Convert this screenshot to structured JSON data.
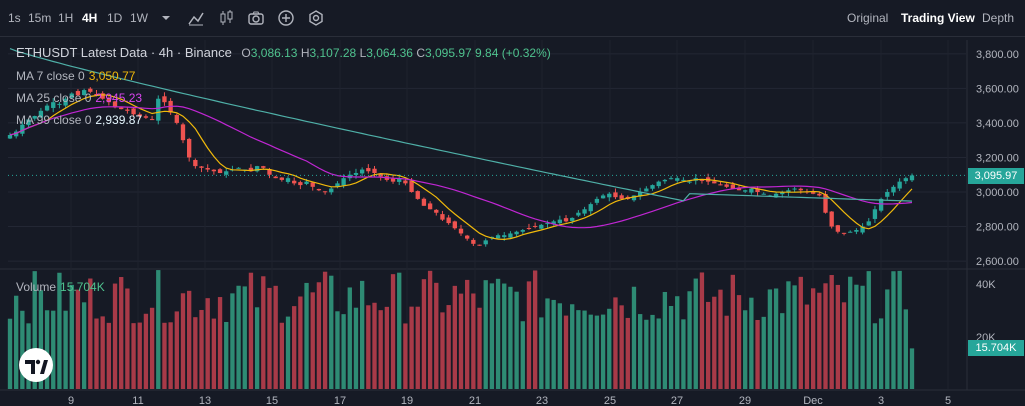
{
  "toolbar": {
    "intervals": [
      "1s",
      "15m",
      "1H",
      "4H",
      "1D",
      "1W"
    ],
    "active_interval": "4H",
    "icons": [
      "chevron-down-icon",
      "indicator-line-icon",
      "candles-icon",
      "camera-icon",
      "plus-circle-icon",
      "settings-hex-icon"
    ],
    "views": [
      "Original",
      "Trading View",
      "Depth"
    ],
    "active_view": "Trading View"
  },
  "legend": {
    "title": "ETHUSDT Latest Data · 4h · Binance",
    "o_label": "O",
    "o_value": "3,086.13",
    "h_label": "H",
    "h_value": "3,107.28",
    "l_label": "L",
    "l_value": "3,064.36",
    "c_label": "C",
    "c_value": "3,095.97",
    "change": "9.84 (+0.32%)",
    "ma7_label": "MA 7 close 0",
    "ma7_value": "3,050.77",
    "ma25_label": "MA 25 close 0",
    "ma25_value": "2,945.23",
    "ma99_label": "MA 99 close 0",
    "ma99_value": "2,939.87",
    "volume_label": "Volume",
    "volume_value": "15.704K"
  },
  "colors": {
    "up": "#26a69a",
    "down": "#ef5350",
    "ma7": "#f0b90b",
    "ma25": "#c026d3",
    "ma99": "#4fb0a8",
    "background": "#161a25"
  },
  "price_axis": [
    "3,800.00",
    "3,600.00",
    "3,400.00",
    "3,200.00",
    "3,000.00",
    "2,800.00",
    "2,600.00"
  ],
  "last_price_tag": "3,095.97",
  "volume_axis": [
    "40K",
    "20K"
  ],
  "volume_tag": "15.704K",
  "time_axis": [
    "9",
    "11",
    "13",
    "15",
    "17",
    "19",
    "21",
    "23",
    "25",
    "27",
    "29",
    "Dec",
    "3",
    "5"
  ],
  "chart_data": {
    "type": "line",
    "ylim": [
      2560,
      3880
    ],
    "closes": [
      3330,
      3350,
      3390,
      3420,
      3440,
      3470,
      3500,
      3520,
      3510,
      3540,
      3570,
      3560,
      3590,
      3580,
      3560,
      3540,
      3520,
      3490,
      3480,
      3470,
      3450,
      3440,
      3430,
      3420,
      3540,
      3520,
      3460,
      3400,
      3300,
      3200,
      3150,
      3140,
      3130,
      3120,
      3110,
      3120,
      3130,
      3140,
      3130,
      3120,
      3150,
      3140,
      3100,
      3080,
      3070,
      3080,
      3050,
      3040,
      3060,
      3030,
      3010,
      3000,
      3020,
      3050,
      3080,
      3100,
      3110,
      3130,
      3120,
      3110,
      3090,
      3070,
      3060,
      3080,
      3050,
      3000,
      2960,
      2920,
      2900,
      2880,
      2840,
      2820,
      2790,
      2760,
      2730,
      2700,
      2690,
      2720,
      2740,
      2750,
      2750,
      2760,
      2770,
      2780,
      2790,
      2800,
      2810,
      2820,
      2830,
      2840,
      2830,
      2850,
      2880,
      2900,
      2930,
      2960,
      2980,
      2990,
      2970,
      2960,
      2960,
      2980,
      3000,
      3020,
      3040,
      3060,
      3070,
      3080,
      3080,
      3070,
      3060,
      3080,
      3070,
      3060,
      3050,
      3040,
      3030,
      3020,
      3010,
      3010,
      3020,
      3000,
      2990,
      2980,
      2990,
      3000,
      3010,
      3020,
      3010,
      3000,
      2990,
      2980,
      2880,
      2800,
      2770,
      2760,
      2770,
      2780,
      2800,
      2830,
      2900,
      2960,
      3000,
      3030,
      3060,
      3080,
      3096
    ],
    "volume_max_k": 46,
    "volume_last_k": 15.704
  }
}
